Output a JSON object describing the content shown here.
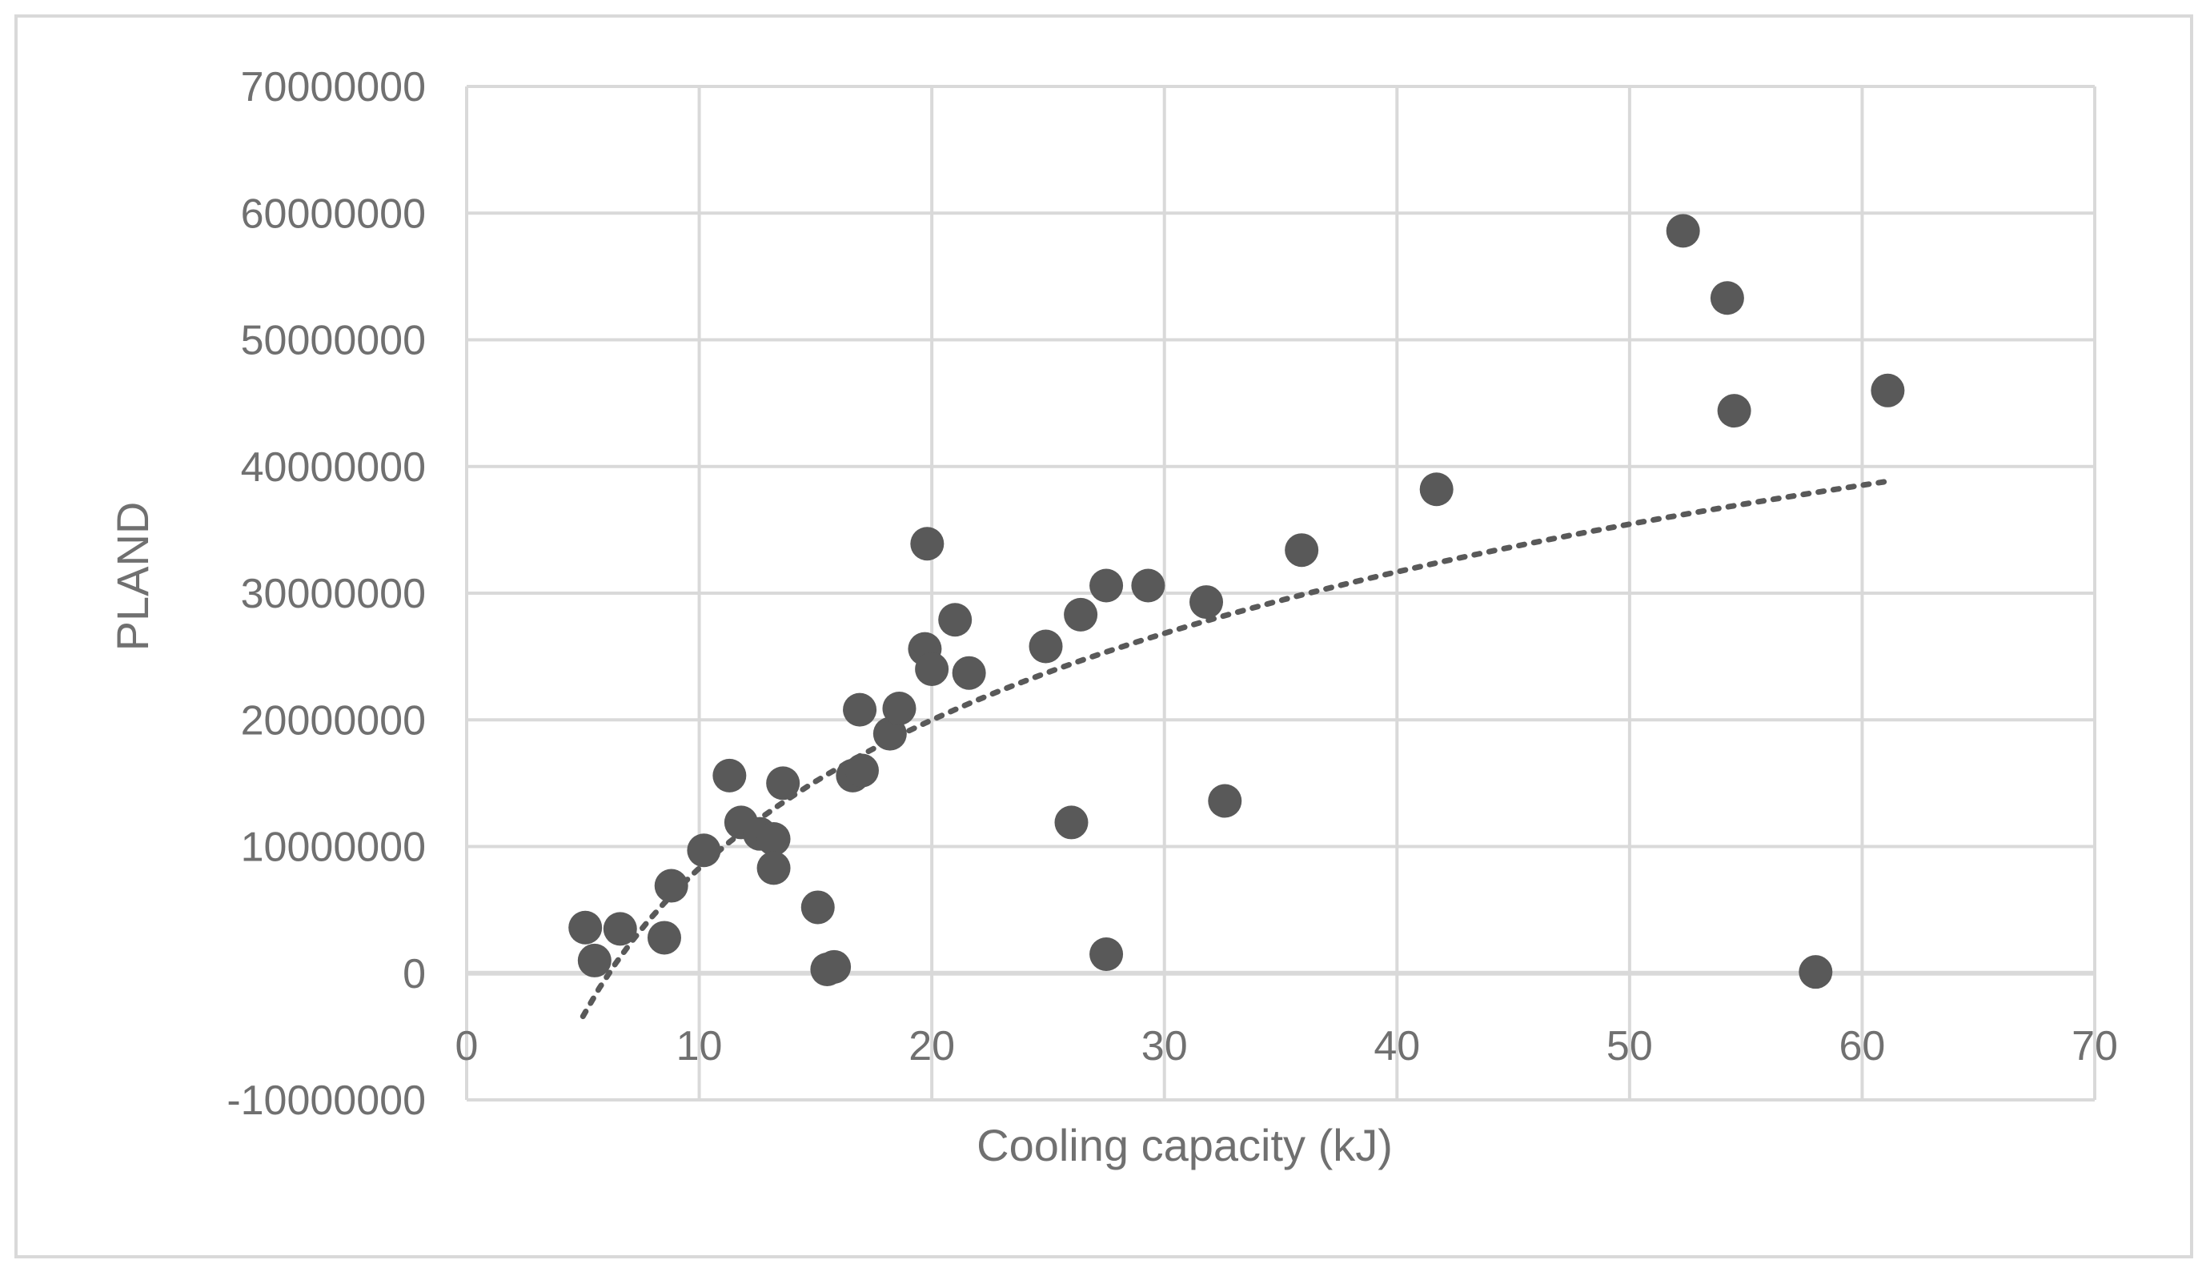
{
  "chart_data": {
    "type": "scatter",
    "title": "",
    "xlabel": "Cooling capacity (kJ)",
    "ylabel": "PLAND",
    "xlim": [
      0,
      70
    ],
    "ylim": [
      -10000000,
      70000000
    ],
    "x_ticks": [
      0,
      10,
      20,
      30,
      40,
      50,
      60,
      70
    ],
    "y_ticks": [
      -10000000,
      0,
      10000000,
      20000000,
      30000000,
      40000000,
      50000000,
      60000000,
      70000000
    ],
    "x_tick_labels": [
      "0",
      "10",
      "20",
      "30",
      "40",
      "50",
      "60",
      "70"
    ],
    "y_tick_labels": [
      "-10000000",
      "0",
      "10000000",
      "20000000",
      "30000000",
      "40000000",
      "50000000",
      "60000000",
      "70000000"
    ],
    "grid": true,
    "legend": "none",
    "marker_color": "#595959",
    "trendline_color": "#595959",
    "grid_color": "#d9d9d9",
    "text_color": "#707070",
    "series": [
      {
        "name": "PLAND",
        "points": [
          {
            "x": 5.1,
            "y": 3600000
          },
          {
            "x": 5.5,
            "y": 1000000
          },
          {
            "x": 6.6,
            "y": 3500000
          },
          {
            "x": 8.5,
            "y": 2800000
          },
          {
            "x": 8.8,
            "y": 6900000
          },
          {
            "x": 10.2,
            "y": 9700000
          },
          {
            "x": 11.3,
            "y": 15600000
          },
          {
            "x": 11.8,
            "y": 11900000
          },
          {
            "x": 12.6,
            "y": 11000000
          },
          {
            "x": 13.2,
            "y": 10600000
          },
          {
            "x": 13.2,
            "y": 8300000
          },
          {
            "x": 13.6,
            "y": 15000000
          },
          {
            "x": 15.1,
            "y": 5200000
          },
          {
            "x": 15.5,
            "y": 300000
          },
          {
            "x": 15.8,
            "y": 500000
          },
          {
            "x": 16.6,
            "y": 15600000
          },
          {
            "x": 16.9,
            "y": 20800000
          },
          {
            "x": 17.0,
            "y": 16000000
          },
          {
            "x": 18.2,
            "y": 18900000
          },
          {
            "x": 18.6,
            "y": 20900000
          },
          {
            "x": 19.7,
            "y": 25600000
          },
          {
            "x": 19.8,
            "y": 33900000
          },
          {
            "x": 20.0,
            "y": 24000000
          },
          {
            "x": 21.0,
            "y": 27900000
          },
          {
            "x": 21.6,
            "y": 23700000
          },
          {
            "x": 24.9,
            "y": 25800000
          },
          {
            "x": 26.0,
            "y": 11900000
          },
          {
            "x": 26.4,
            "y": 28300000
          },
          {
            "x": 27.5,
            "y": 30600000
          },
          {
            "x": 27.5,
            "y": 1500000
          },
          {
            "x": 29.3,
            "y": 30600000
          },
          {
            "x": 31.8,
            "y": 29300000
          },
          {
            "x": 32.6,
            "y": 13600000
          },
          {
            "x": 35.9,
            "y": 33400000
          },
          {
            "x": 41.7,
            "y": 38200000
          },
          {
            "x": 52.3,
            "y": 58600000
          },
          {
            "x": 54.2,
            "y": 53300000
          },
          {
            "x": 54.5,
            "y": 44400000
          },
          {
            "x": 58.0,
            "y": 100000
          },
          {
            "x": 61.1,
            "y": 46000000
          }
        ]
      }
    ],
    "trendline": {
      "type": "logarithmic",
      "from": {
        "x": 5.0,
        "y": -3400000
      },
      "to": {
        "x": 61.0,
        "y": 38800000
      }
    }
  }
}
